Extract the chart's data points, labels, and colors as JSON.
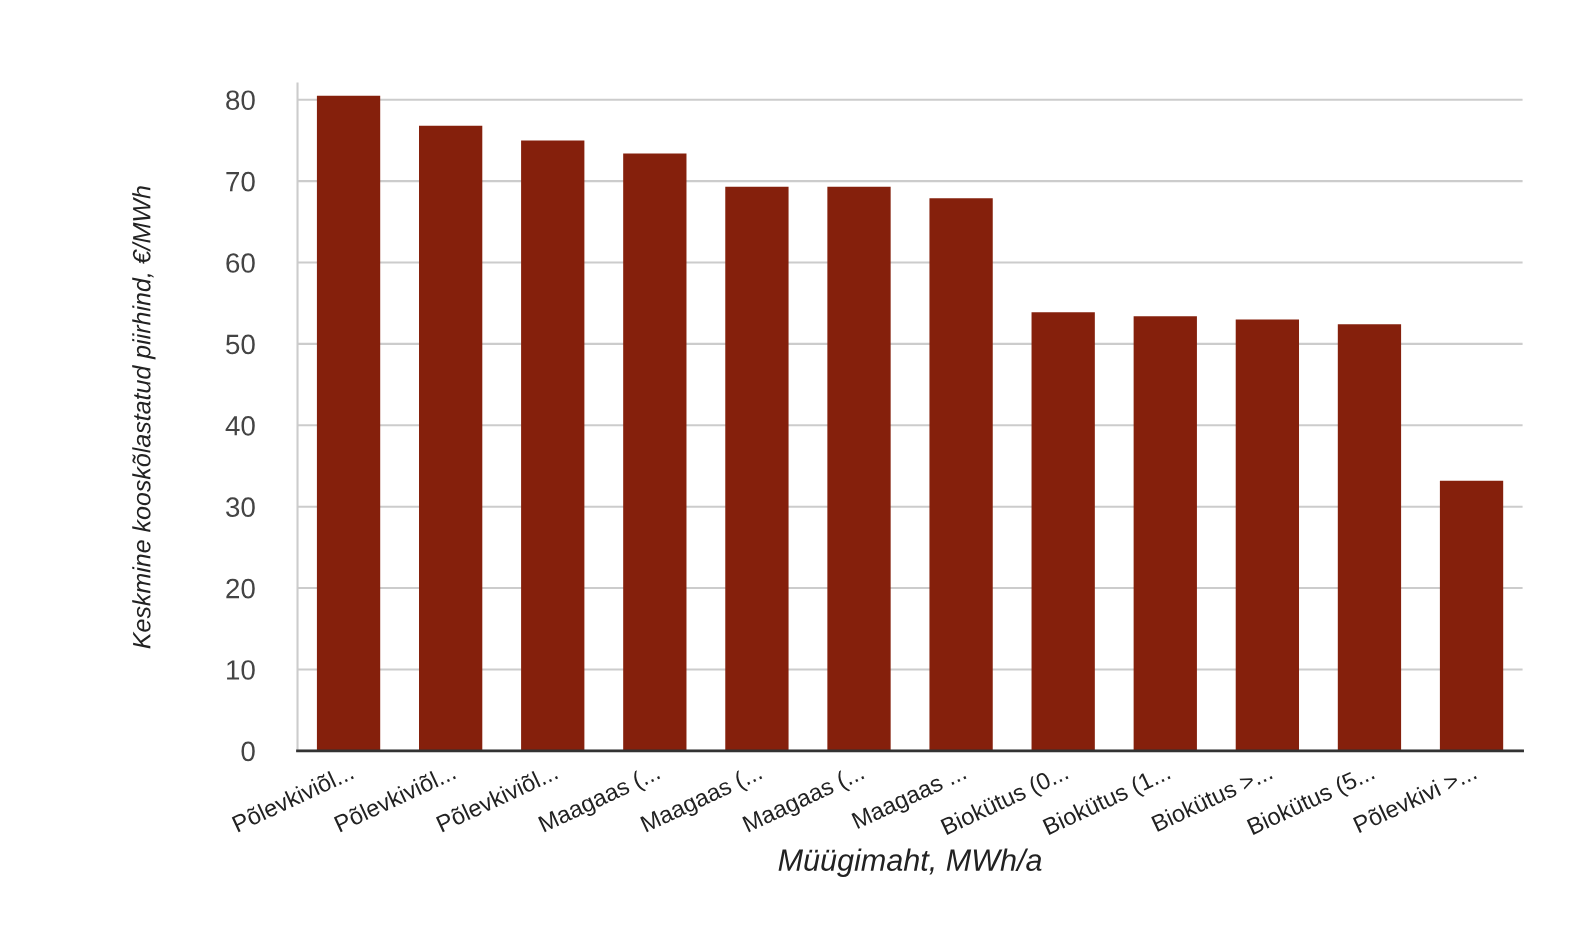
{
  "chart_data": {
    "type": "bar",
    "xlabel": "Müügimaht, MWh/a",
    "ylabel": "Keskmine kooskõlastatud piirhind, €/MWh",
    "categories": [
      "Põlevkiviõl...",
      "Põlevkiviõl...",
      "Põlevkiviõl...",
      "Maagaas (...",
      "Maagaas (...",
      "Maagaas (...",
      "Maagaas ...",
      "Biokütus (0...",
      "Biokütus (1...",
      "Biokütus >...",
      "Biokütus (5...",
      "Põlevkivi >..."
    ],
    "values": [
      80.5,
      76.8,
      75.0,
      73.4,
      69.3,
      69.3,
      67.9,
      53.9,
      53.4,
      53.0,
      52.4,
      33.2
    ],
    "color": "#85200c",
    "ylim": [
      0,
      82
    ],
    "yticks": [
      0,
      10,
      20,
      30,
      40,
      50,
      60,
      70,
      80
    ],
    "grid": "y",
    "legend": false
  }
}
